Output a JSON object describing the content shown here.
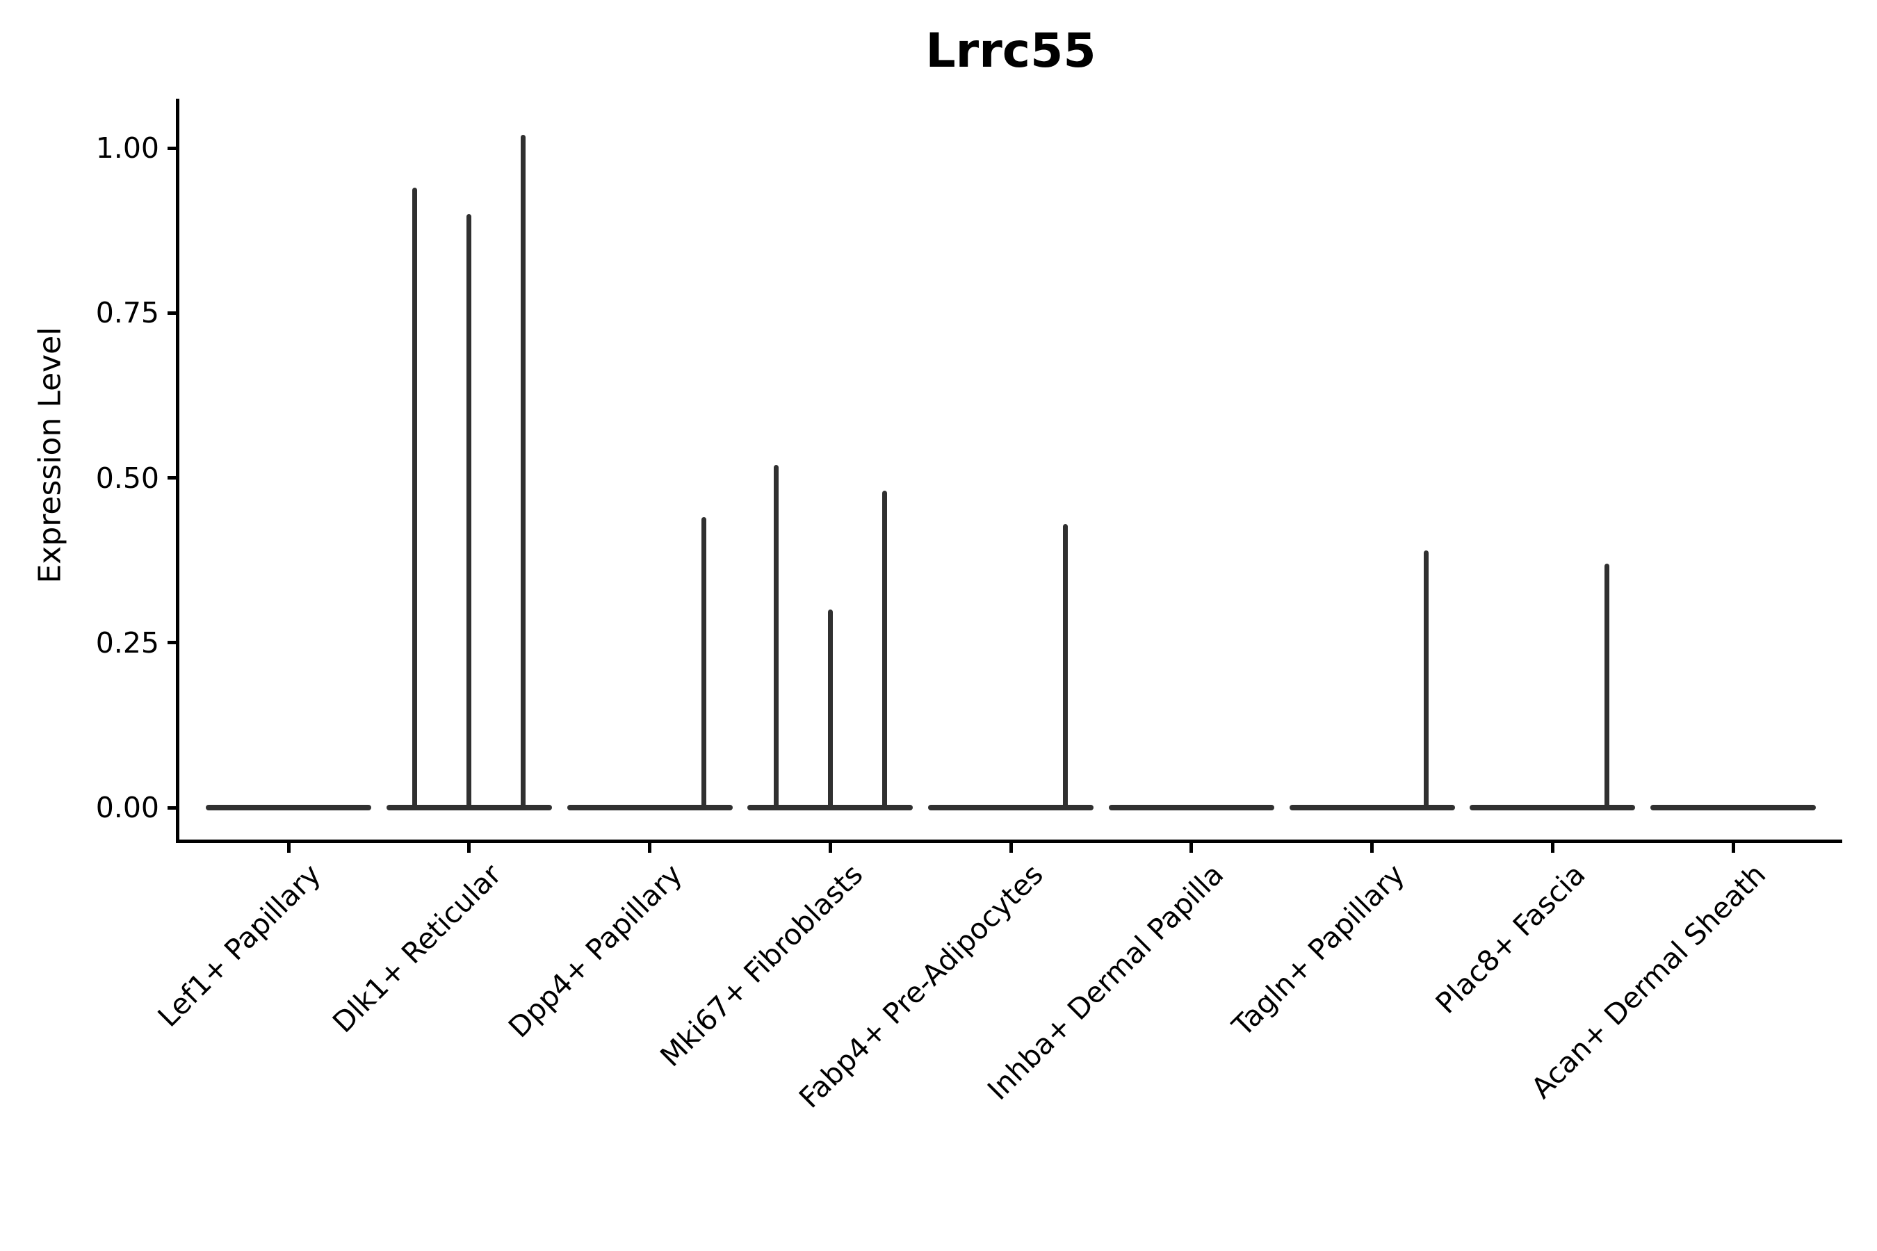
{
  "title": "Lrrc55",
  "ylabel": "Expression Level",
  "colors": {
    "violin_line": "#303030",
    "axis": "#000000",
    "text": "#000000",
    "background": "#ffffff"
  },
  "chart_data": {
    "type": "violin",
    "title": "Lrrc55",
    "xlabel": "",
    "ylabel": "Expression Level",
    "ylim": [
      -0.05,
      1.07
    ],
    "grid": false,
    "legend": null,
    "ytick_labels": [
      "0.00",
      "0.25",
      "0.50",
      "0.75",
      "1.00"
    ],
    "ytick_values": [
      0.0,
      0.25,
      0.5,
      0.75,
      1.0
    ],
    "categories": [
      "Lef1+ Papillary",
      "Dlk1+ Reticular",
      "Dpp4+ Papillary",
      "Mki67+ Fibroblasts",
      "Fabp4+ Pre-Adipocytes",
      "Inhba+ Dermal Papilla",
      "Tagln+ Papillary",
      "Plac8+ Fascia",
      "Acan+ Dermal Sheath"
    ],
    "violins": [
      {
        "category": "Lef1+ Papillary",
        "baseline_value": 0,
        "spikes": []
      },
      {
        "category": "Dlk1+ Reticular",
        "baseline_value": 0,
        "spikes": [
          {
            "slot": -1,
            "value": 0.94
          },
          {
            "slot": 0,
            "value": 0.9
          },
          {
            "slot": 1,
            "value": 1.02
          }
        ]
      },
      {
        "category": "Dpp4+ Papillary",
        "baseline_value": 0,
        "spikes": [
          {
            "slot": 1,
            "value": 0.44
          }
        ]
      },
      {
        "category": "Mki67+ Fibroblasts",
        "baseline_value": 0,
        "spikes": [
          {
            "slot": -1,
            "value": 0.52
          },
          {
            "slot": 0,
            "value": 0.3
          },
          {
            "slot": 1,
            "value": 0.48
          }
        ]
      },
      {
        "category": "Fabp4+ Pre-Adipocytes",
        "baseline_value": 0,
        "spikes": [
          {
            "slot": 1,
            "value": 0.43
          }
        ]
      },
      {
        "category": "Inhba+ Dermal Papilla",
        "baseline_value": 0,
        "spikes": []
      },
      {
        "category": "Tagln+ Papillary",
        "baseline_value": 0,
        "spikes": [
          {
            "slot": 1,
            "value": 0.39
          }
        ]
      },
      {
        "category": "Plac8+ Fascia",
        "baseline_value": 0,
        "spikes": [
          {
            "slot": 1,
            "value": 0.37
          }
        ]
      },
      {
        "category": "Acan+ Dermal Sheath",
        "baseline_value": 0,
        "spikes": []
      }
    ]
  }
}
